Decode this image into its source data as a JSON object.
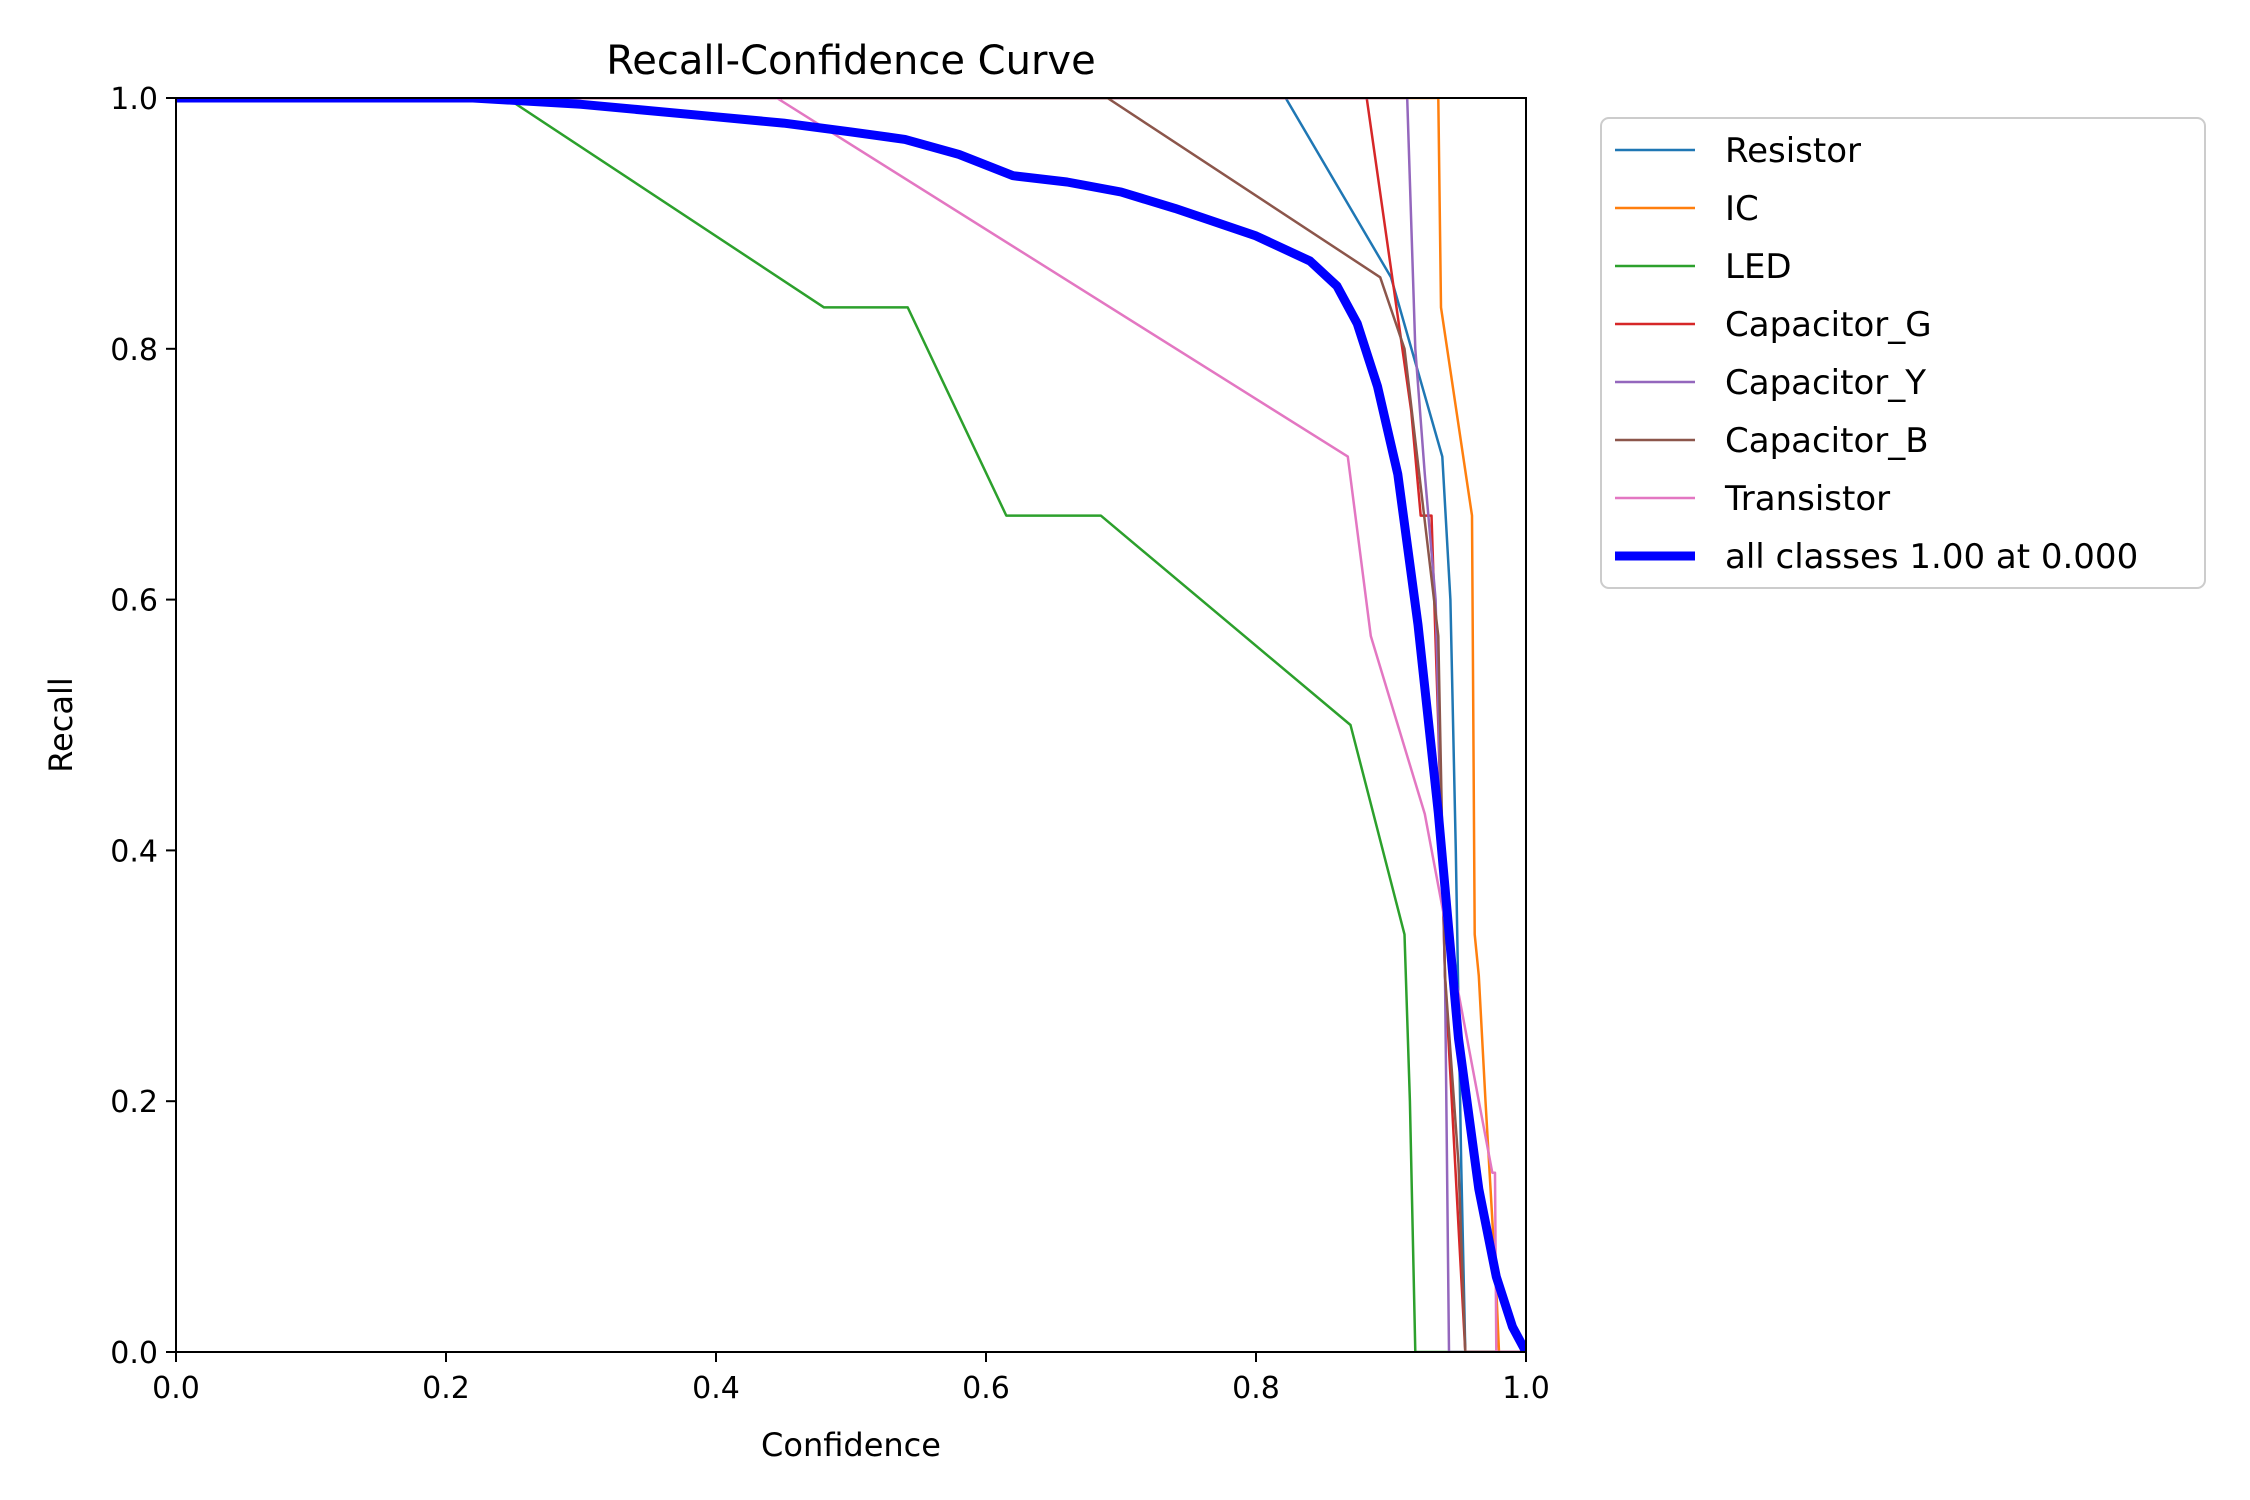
{
  "chart_data": {
    "type": "line",
    "title": "Recall-Confidence Curve",
    "xlabel": "Confidence",
    "ylabel": "Recall",
    "xlim": [
      0,
      1
    ],
    "ylim": [
      0,
      1
    ],
    "xticks": [
      "0.0",
      "0.2",
      "0.4",
      "0.6",
      "0.8",
      "1.0"
    ],
    "yticks": [
      "0.0",
      "0.2",
      "0.4",
      "0.6",
      "0.8",
      "1.0"
    ],
    "grid": false,
    "legend": "outside-right-top",
    "series": [
      {
        "name": "Resistor",
        "color": "#1f77b4",
        "bold": false,
        "x": [
          0,
          0.822,
          0.9,
          0.938,
          0.944,
          0.948,
          0.952,
          0.955,
          1.0
        ],
        "y": [
          1,
          1,
          0.857,
          0.714,
          0.6,
          0.4,
          0.15,
          0,
          0
        ]
      },
      {
        "name": "IC",
        "color": "#ff7f0e",
        "bold": false,
        "x": [
          0,
          0.935,
          0.937,
          0.96,
          0.962,
          0.965,
          0.97,
          0.978,
          0.98,
          1.0
        ],
        "y": [
          1,
          1,
          0.833,
          0.667,
          0.333,
          0.3,
          0.2,
          0.05,
          0,
          0
        ]
      },
      {
        "name": "LED",
        "color": "#2ca02c",
        "bold": false,
        "x": [
          0,
          0.245,
          0.48,
          0.542,
          0.615,
          0.685,
          0.87,
          0.91,
          0.914,
          0.916,
          0.918,
          1.0
        ],
        "y": [
          1,
          1,
          0.833,
          0.833,
          0.667,
          0.667,
          0.5,
          0.333,
          0.2,
          0.1,
          0,
          0
        ]
      },
      {
        "name": "Capacitor_G",
        "color": "#d62728",
        "bold": false,
        "x": [
          0,
          0.882,
          0.915,
          0.922,
          0.93,
          0.935,
          0.94,
          0.945,
          0.95,
          0.955,
          1.0
        ],
        "y": [
          1,
          1,
          0.75,
          0.667,
          0.667,
          0.5,
          0.3,
          0.2,
          0.1,
          0,
          0
        ]
      },
      {
        "name": "Capacitor_Y",
        "color": "#9467bd",
        "bold": false,
        "x": [
          0,
          0.912,
          0.918,
          0.925,
          0.933,
          0.94,
          0.943,
          1.0
        ],
        "y": [
          1,
          1,
          0.8,
          0.7,
          0.6,
          0.3,
          0,
          0
        ]
      },
      {
        "name": "Capacitor_B",
        "color": "#8c564b",
        "bold": false,
        "x": [
          0,
          0.69,
          0.892,
          0.91,
          0.935,
          0.94,
          0.95,
          0.955,
          1.0
        ],
        "y": [
          1,
          1,
          0.857,
          0.8,
          0.571,
          0.3,
          0.15,
          0,
          0
        ]
      },
      {
        "name": "Transistor",
        "color": "#e377c2",
        "bold": false,
        "x": [
          0,
          0.445,
          0.868,
          0.885,
          0.925,
          0.975,
          0.977,
          0.978,
          1.0
        ],
        "y": [
          1,
          1,
          0.714,
          0.571,
          0.429,
          0.143,
          0.143,
          0,
          0
        ]
      },
      {
        "name": "all classes 1.00 at 0.000",
        "color": "#0000ff",
        "bold": true,
        "x": [
          0,
          0.22,
          0.3,
          0.4,
          0.45,
          0.5,
          0.54,
          0.58,
          0.62,
          0.66,
          0.7,
          0.74,
          0.8,
          0.84,
          0.86,
          0.875,
          0.89,
          0.905,
          0.92,
          0.935,
          0.95,
          0.965,
          0.978,
          0.99,
          1.0
        ],
        "y": [
          1,
          1,
          0.995,
          0.985,
          0.98,
          0.973,
          0.967,
          0.955,
          0.938,
          0.933,
          0.925,
          0.912,
          0.89,
          0.87,
          0.85,
          0.82,
          0.77,
          0.7,
          0.58,
          0.43,
          0.25,
          0.13,
          0.06,
          0.02,
          0
        ]
      }
    ]
  }
}
